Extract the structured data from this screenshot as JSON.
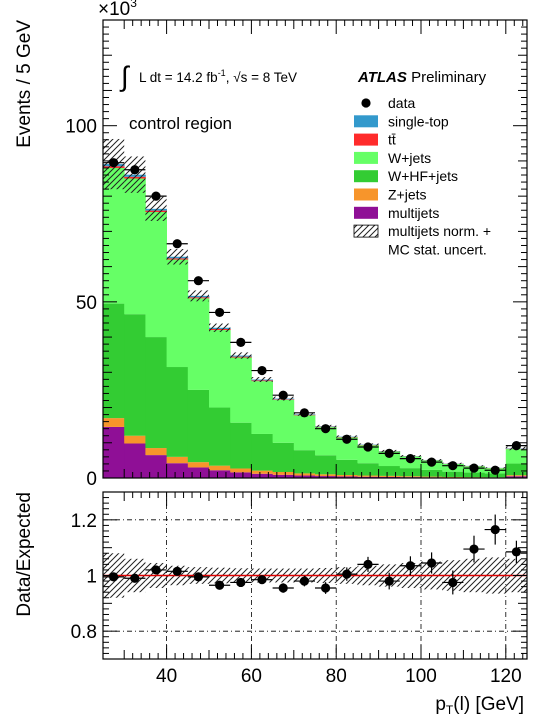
{
  "chart_data": [
    {
      "type": "bar",
      "stacked": true,
      "ylabel": "Events / 5 GeV",
      "y_multiplier": "×10",
      "y_multiplier_exp": "3",
      "ylim": [
        0,
        130
      ],
      "yticks": [
        0,
        50,
        100
      ],
      "xlim": [
        25,
        125
      ],
      "bin_width": 5,
      "bins_lo": [
        25,
        30,
        35,
        40,
        45,
        50,
        55,
        60,
        65,
        70,
        75,
        80,
        85,
        90,
        95,
        100,
        105,
        110,
        115,
        120
      ],
      "luminosity": {
        "integral": "∫",
        "pre": "L dt =  14.2 fb",
        "sup": "-1",
        "mid": ", ",
        "sqrt": "√",
        "post": "s = 8 TeV"
      },
      "experiment": {
        "name": "ATLAS",
        "status": "Preliminary"
      },
      "region_label": "control region",
      "series": [
        {
          "name": "multijets",
          "color": "#8f0f96",
          "values": [
            14.5,
            9.8,
            6.5,
            4.2,
            3.0,
            2.2,
            1.6,
            1.2,
            0.9,
            0.7,
            0.55,
            0.45,
            0.35,
            0.3,
            0.25,
            0.2,
            0.15,
            0.12,
            0.1,
            0.5
          ]
        },
        {
          "name": "Z+jets",
          "color": "#f7952b",
          "values": [
            2.5,
            2.2,
            2.0,
            1.8,
            1.5,
            1.3,
            1.1,
            0.9,
            0.8,
            0.6,
            0.5,
            0.4,
            0.35,
            0.3,
            0.25,
            0.2,
            0.15,
            0.12,
            0.1,
            0.3
          ]
        },
        {
          "name": "W+HF+jets",
          "color": "#33cc33",
          "values": [
            32.5,
            34.5,
            31.5,
            25.5,
            20.5,
            16.5,
            13.0,
            10.4,
            8.3,
            6.6,
            5.4,
            4.3,
            3.5,
            2.8,
            2.3,
            1.9,
            1.5,
            1.3,
            1.1,
            3.3
          ]
        },
        {
          "name": "W+jets",
          "color": "#66ff66",
          "values": [
            38.5,
            38.5,
            35.5,
            30.5,
            26.0,
            22.0,
            18.5,
            15.0,
            12.2,
            9.9,
            8.0,
            6.4,
            5.1,
            4.1,
            3.3,
            2.7,
            2.2,
            1.8,
            1.5,
            4.1
          ]
        },
        {
          "name": "tt̄",
          "color": "#ff2b2b",
          "values": [
            0.5,
            0.5,
            0.4,
            0.35,
            0.3,
            0.3,
            0.25,
            0.2,
            0.15,
            0.15,
            0.12,
            0.1,
            0.1,
            0.08,
            0.07,
            0.06,
            0.05,
            0.05,
            0.04,
            0.1
          ]
        },
        {
          "name": "single-top",
          "color": "#3399cc",
          "values": [
            0.6,
            0.6,
            0.5,
            0.45,
            0.4,
            0.35,
            0.3,
            0.25,
            0.2,
            0.15,
            0.12,
            0.1,
            0.1,
            0.08,
            0.07,
            0.06,
            0.05,
            0.05,
            0.04,
            0.1
          ]
        }
      ],
      "uncertainty": {
        "name_line1": "multijets norm. +",
        "name_line2": "MC stat. uncert.",
        "frac": [
          0.08,
          0.06,
          0.045,
          0.035,
          0.03,
          0.028,
          0.026,
          0.025,
          0.025,
          0.025,
          0.027,
          0.03,
          0.035,
          0.04,
          0.045,
          0.05,
          0.055,
          0.06,
          0.065,
          0.06
        ]
      },
      "data": {
        "name": "data",
        "values": [
          89.5,
          87.5,
          80.0,
          66.5,
          56.0,
          47.0,
          38.5,
          30.5,
          23.5,
          18.5,
          14.0,
          11.0,
          8.8,
          7.0,
          5.5,
          4.5,
          3.5,
          2.8,
          2.2,
          9.2
        ]
      }
    },
    {
      "type": "scatter",
      "ylabel": "Data/Expected",
      "xlabel_main": "p",
      "xlabel_sub": "T",
      "xlabel_rest": "(l) [GeV]",
      "xlim": [
        25,
        125
      ],
      "ylim": [
        0.7,
        1.3
      ],
      "xticks": [
        40,
        60,
        80,
        100,
        120
      ],
      "yticks": [
        0.8,
        1,
        1.2
      ],
      "ytick_labels": [
        "0.8",
        "1",
        "1.2"
      ],
      "reference_line": 1,
      "reference_color": "#dd0000",
      "x": [
        27.5,
        32.5,
        37.5,
        42.5,
        47.5,
        52.5,
        57.5,
        62.5,
        67.5,
        72.5,
        77.5,
        82.5,
        87.5,
        92.5,
        97.5,
        102.5,
        107.5,
        112.5,
        117.5,
        122.5
      ],
      "ratio": [
        0.995,
        0.99,
        1.02,
        1.015,
        0.995,
        0.965,
        0.975,
        0.985,
        0.955,
        0.98,
        0.955,
        1.005,
        1.04,
        0.98,
        1.035,
        1.045,
        0.975,
        1.095,
        1.165,
        1.085
      ],
      "ratio_err": [
        0.01,
        0.01,
        0.012,
        0.012,
        0.012,
        0.013,
        0.014,
        0.015,
        0.017,
        0.019,
        0.021,
        0.024,
        0.027,
        0.03,
        0.034,
        0.038,
        0.043,
        0.048,
        0.054,
        0.04
      ]
    }
  ]
}
